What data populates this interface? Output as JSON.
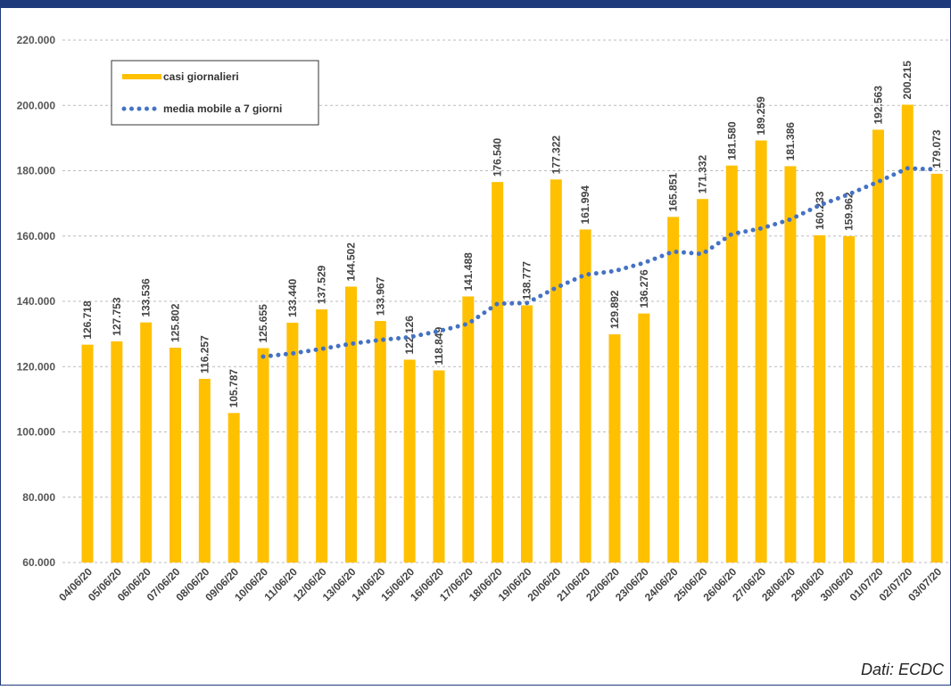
{
  "chart_data": {
    "type": "bar",
    "categories": [
      "04/06/20",
      "05/06/20",
      "06/06/20",
      "07/06/20",
      "08/06/20",
      "09/06/20",
      "10/06/20",
      "11/06/20",
      "12/06/20",
      "13/06/20",
      "14/06/20",
      "15/06/20",
      "16/06/20",
      "17/06/20",
      "18/06/20",
      "19/06/20",
      "20/06/20",
      "21/06/20",
      "22/06/20",
      "23/06/20",
      "24/06/20",
      "25/06/20",
      "26/06/20",
      "27/06/20",
      "28/06/20",
      "29/06/20",
      "30/06/20",
      "01/07/20",
      "02/07/20",
      "03/07/20"
    ],
    "series": [
      {
        "name": "casi giornalieri",
        "color": "#ffc000",
        "values": [
          126718,
          127753,
          133536,
          125802,
          116257,
          105787,
          125655,
          133440,
          137529,
          144502,
          133967,
          122126,
          118849,
          141488,
          176540,
          138777,
          177322,
          161994,
          129892,
          136276,
          165851,
          171332,
          181580,
          189259,
          181386,
          160233,
          159962,
          192563,
          200215,
          179073
        ],
        "value_labels": [
          "126.718",
          "127.753",
          "133.536",
          "125.802",
          "116.257",
          "105.787",
          "125.655",
          "133.440",
          "137.529",
          "144.502",
          "133.967",
          "122.126",
          "118.849",
          "141.488",
          "176.540",
          "138.777",
          "177.322",
          "161.994",
          "129.892",
          "136.276",
          "165.851",
          "171.332",
          "181.580",
          "189.259",
          "181.386",
          "160.233",
          "159.962",
          "192.563",
          "200.215",
          "179.073"
        ]
      },
      {
        "name": "media mobile a 7 giorni",
        "color": "#4472c4",
        "type": "line",
        "values": [
          null,
          null,
          null,
          null,
          null,
          null,
          123073,
          124033,
          125429,
          126996,
          128162,
          129001,
          130867,
          133129,
          139286,
          139464,
          144153,
          148157,
          149266,
          151756,
          155236,
          154492,
          160607,
          162312,
          165082,
          169417,
          172800,
          176616,
          180743,
          180384
        ]
      }
    ],
    "ylim": [
      60000,
      220000
    ],
    "yticks": [
      {
        "value": 60000,
        "label": "60.000"
      },
      {
        "value": 80000,
        "label": "80.000"
      },
      {
        "value": 100000,
        "label": "100.000"
      },
      {
        "value": 120000,
        "label": "120.000"
      },
      {
        "value": 140000,
        "label": "140.000"
      },
      {
        "value": 160000,
        "label": "160.000"
      },
      {
        "value": 180000,
        "label": "180.000"
      },
      {
        "value": 200000,
        "label": "200.000"
      },
      {
        "value": 220000,
        "label": "220.000"
      }
    ],
    "grid": true,
    "source": "Dati: ECDC"
  }
}
